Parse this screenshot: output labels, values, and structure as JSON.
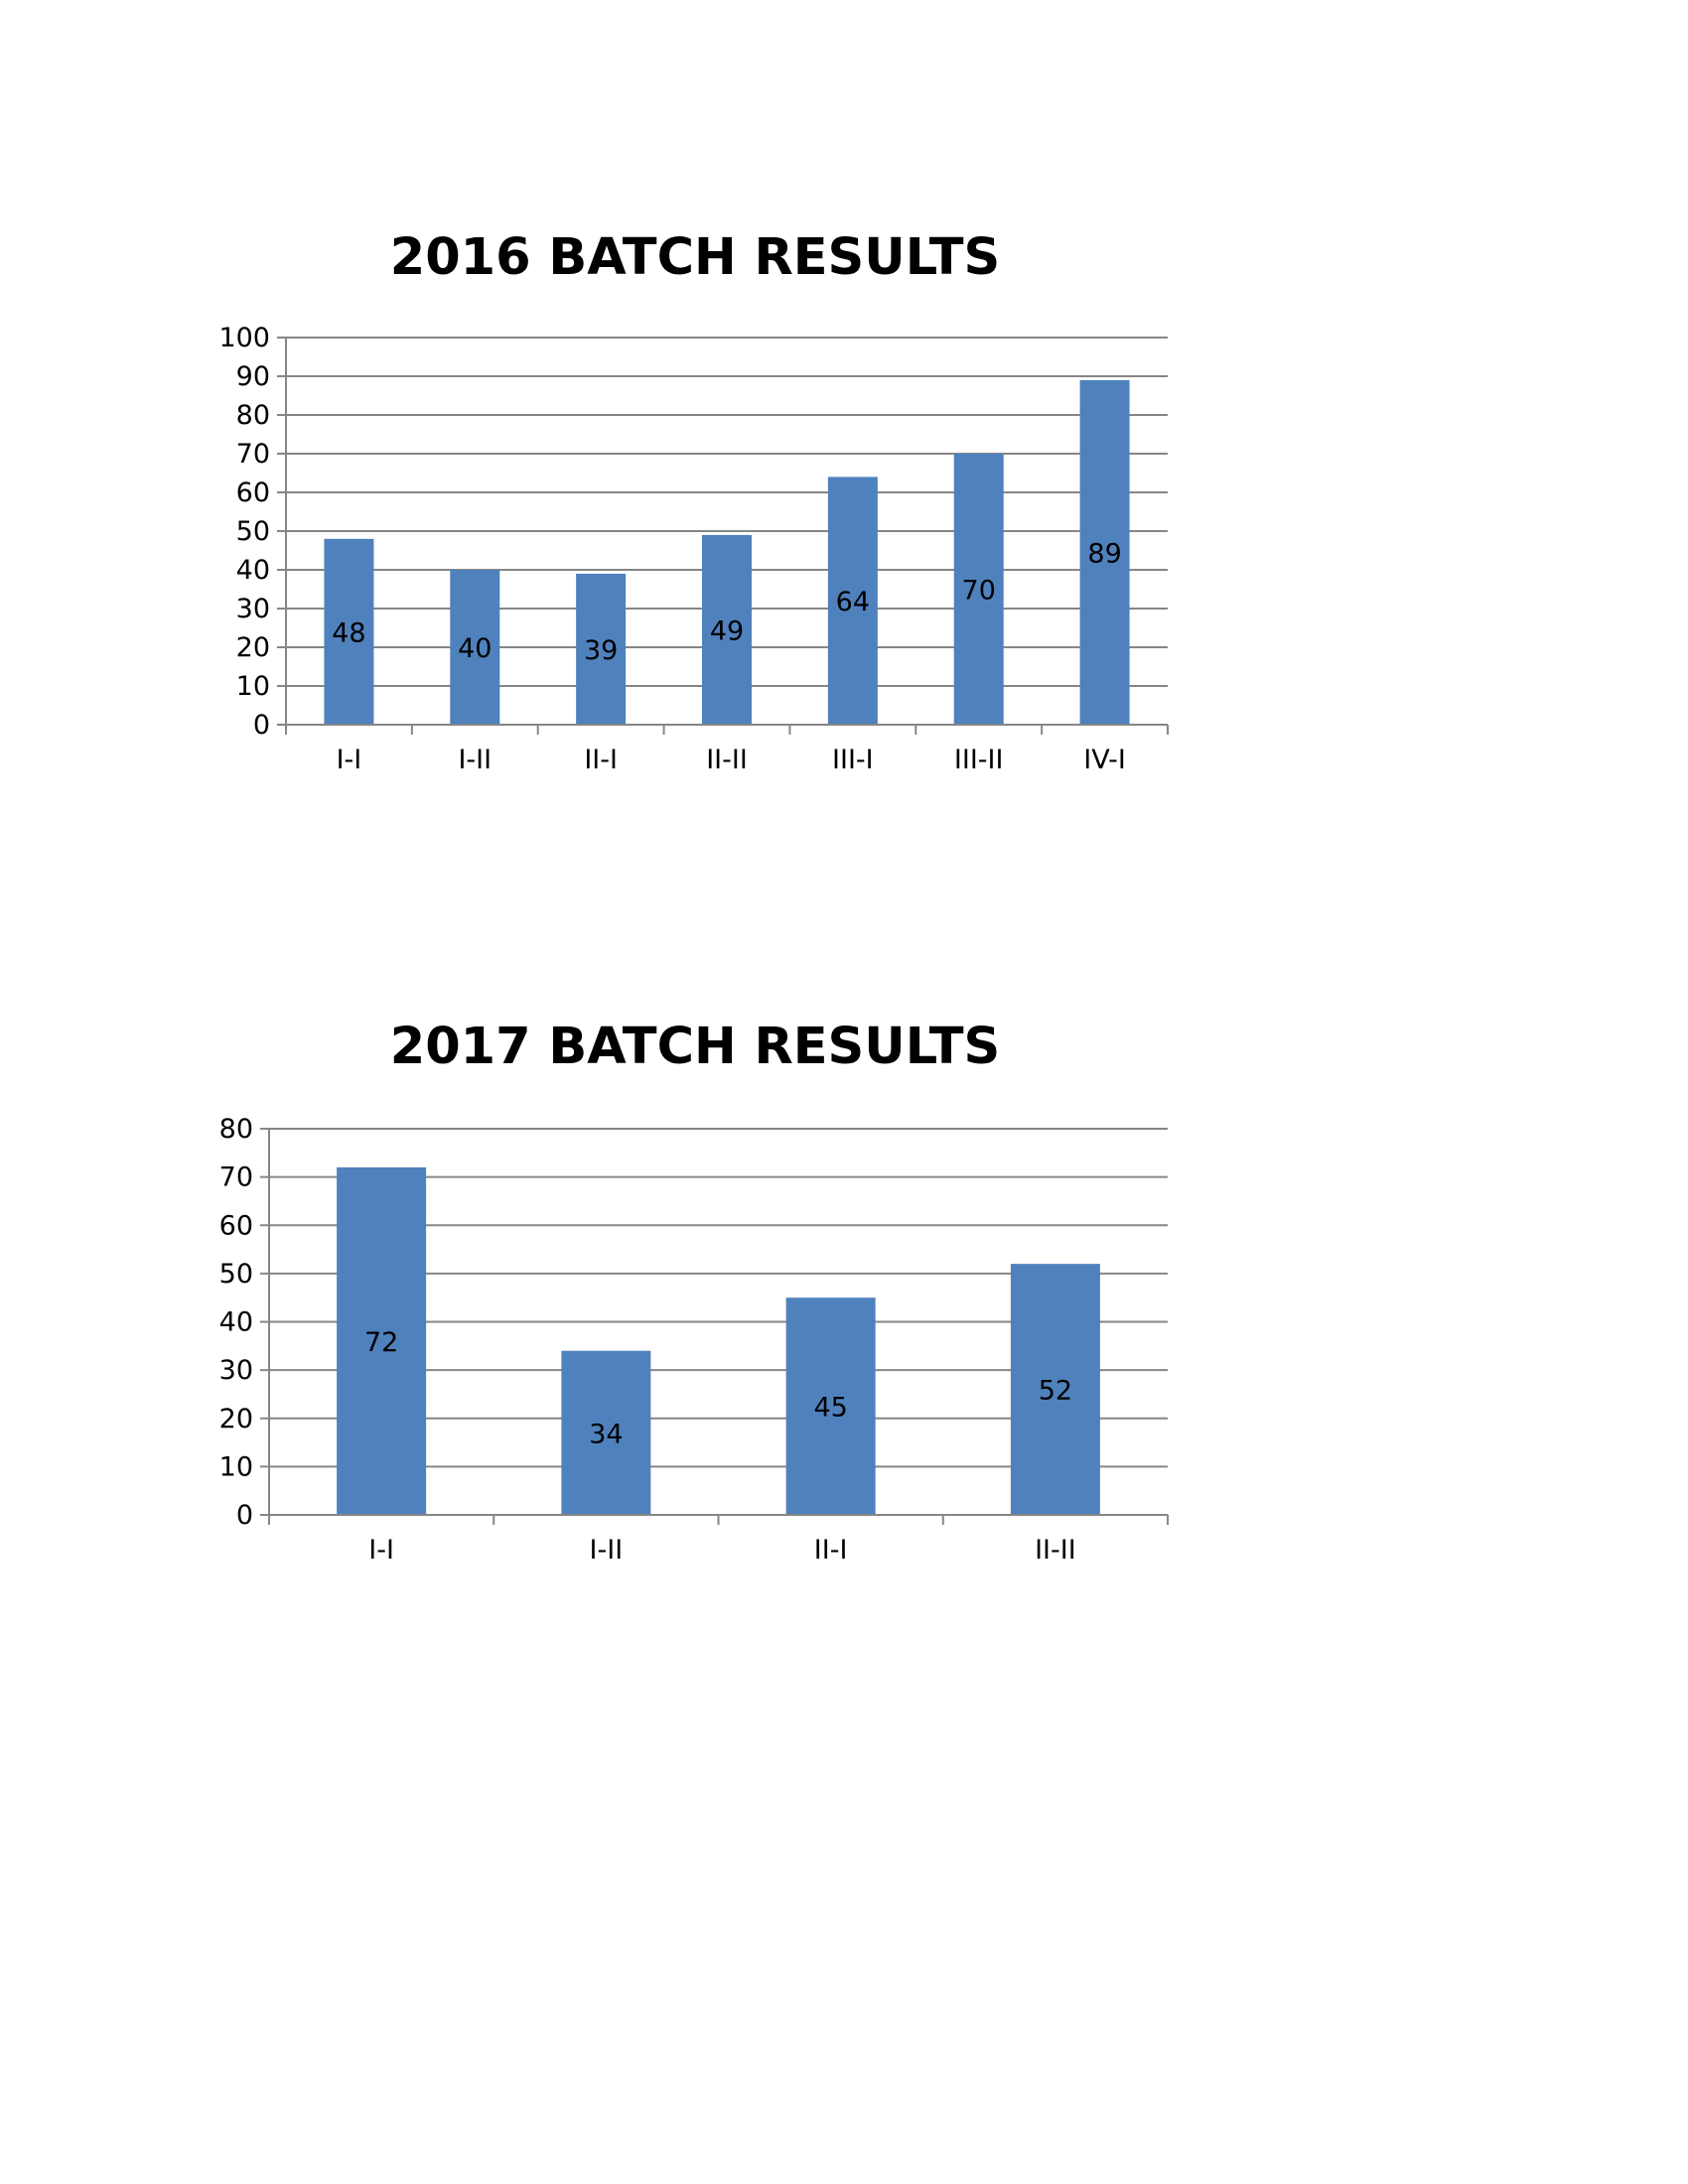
{
  "colors": {
    "bar": "#4f81bd",
    "grid": "#868686",
    "text": "#000000",
    "background": "#ffffff"
  },
  "chart_data": [
    {
      "type": "bar",
      "title": "2016 BATCH RESULTS",
      "xlabel": "",
      "ylabel": "",
      "categories": [
        "I-I",
        "I-II",
        "II-I",
        "II-II",
        "III-I",
        "III-II",
        "IV-I"
      ],
      "values": [
        48,
        40,
        39,
        49,
        64,
        70,
        89
      ],
      "ylim": [
        0,
        100
      ],
      "ytick_step": 10,
      "grid": true,
      "legend": "none",
      "data_labels": "center"
    },
    {
      "type": "bar",
      "title": "2017 BATCH RESULTS",
      "xlabel": "",
      "ylabel": "",
      "categories": [
        "I-I",
        "I-II",
        "II-I",
        "II-II"
      ],
      "values": [
        72,
        34,
        45,
        52
      ],
      "ylim": [
        0,
        80
      ],
      "ytick_step": 10,
      "grid": true,
      "legend": "none",
      "data_labels": "center"
    }
  ]
}
